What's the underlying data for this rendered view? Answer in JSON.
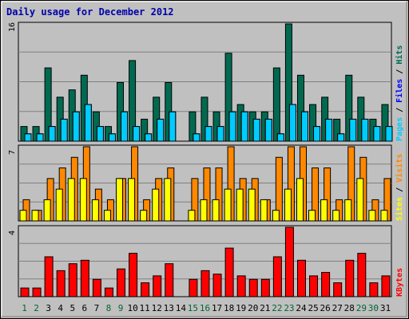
{
  "chart_data": {
    "type": "bar",
    "title": "Daily usage for December 2012",
    "categories": [
      "1",
      "2",
      "3",
      "4",
      "5",
      "6",
      "7",
      "8",
      "9",
      "10",
      "11",
      "12",
      "13",
      "14",
      "15",
      "16",
      "17",
      "18",
      "19",
      "20",
      "21",
      "22",
      "23",
      "24",
      "25",
      "26",
      "27",
      "28",
      "29",
      "30",
      "31"
    ],
    "weekend_days": [
      "1",
      "2",
      "8",
      "9",
      "15",
      "16",
      "22",
      "23",
      "29",
      "30"
    ],
    "colors": {
      "background": "#c0c0c0",
      "border": "#000000",
      "title": "#0000aa",
      "axis_text": "#000000",
      "weekday_label": "#000000",
      "weekend_label": "#006633",
      "hits": "#006a50",
      "files": "#00ccff",
      "pages": "#00ccff",
      "visits": "#ff8800",
      "sites": "#ffff00",
      "kbytes": "#ff0000",
      "legend_sep": "#000000"
    },
    "panels": [
      {
        "id": "hits_files_pages",
        "ymax": 16,
        "ymax_label": "16",
        "legend": [
          {
            "name": "Pages",
            "color": "#00ccff"
          },
          {
            "name": "Files",
            "color": "#0000ff"
          },
          {
            "name": "Hits",
            "color": "#006a50"
          }
        ],
        "series": [
          {
            "name": "Hits",
            "values": [
              2,
              2,
              10,
              6,
              7,
              9,
              4,
              2,
              8,
              11,
              3,
              6,
              8,
              0,
              4,
              6,
              4,
              12,
              5,
              4,
              4,
              10,
              16,
              9,
              5,
              6,
              3,
              9,
              6,
              3,
              5
            ]
          },
          {
            "name": "Files",
            "values": [
              1,
              1,
              2,
              3,
              4,
              5,
              2,
              1,
              4,
              2,
              1,
              3,
              4,
              0,
              1,
              2,
              2,
              4,
              4,
              3,
              3,
              1,
              5,
              4,
              2,
              3,
              1,
              3,
              3,
              2,
              2
            ]
          },
          {
            "name": "Pages",
            "values": [
              1,
              1,
              2,
              3,
              4,
              5,
              2,
              1,
              4,
              2,
              1,
              3,
              4,
              0,
              1,
              2,
              2,
              4,
              4,
              3,
              3,
              1,
              5,
              4,
              2,
              3,
              1,
              3,
              3,
              2,
              2
            ]
          }
        ]
      },
      {
        "id": "visits_sites",
        "ymax": 7,
        "ymax_label": "7",
        "legend": [
          {
            "name": "Sites",
            "color": "#ffff00"
          },
          {
            "name": "Visits",
            "color": "#ff8800"
          }
        ],
        "series": [
          {
            "name": "Visits",
            "values": [
              2,
              1,
              4,
              5,
              6,
              7,
              3,
              2,
              4,
              7,
              2,
              4,
              5,
              0,
              4,
              5,
              5,
              7,
              4,
              4,
              2,
              6,
              7,
              7,
              5,
              5,
              2,
              7,
              6,
              2,
              4
            ]
          },
          {
            "name": "Sites",
            "values": [
              1,
              1,
              2,
              3,
              4,
              4,
              2,
              1,
              4,
              4,
              1,
              3,
              4,
              0,
              1,
              2,
              2,
              3,
              3,
              3,
              2,
              1,
              3,
              4,
              1,
              2,
              1,
              2,
              4,
              1,
              1
            ]
          }
        ]
      },
      {
        "id": "kbytes",
        "ymax": 4,
        "ymax_label": "4",
        "legend": [
          {
            "name": "KBytes",
            "color": "#ff0000"
          }
        ],
        "series": [
          {
            "name": "KBytes",
            "values": [
              0.5,
              0.5,
              2.3,
              1.5,
              1.9,
              2.1,
              1.0,
              0.5,
              1.6,
              2.5,
              0.8,
              1.2,
              1.9,
              0,
              1.0,
              1.5,
              1.3,
              2.8,
              1.2,
              1.0,
              1.0,
              2.3,
              4.0,
              2.1,
              1.2,
              1.4,
              0.8,
              2.1,
              2.5,
              0.8,
              1.2
            ]
          }
        ]
      }
    ]
  }
}
